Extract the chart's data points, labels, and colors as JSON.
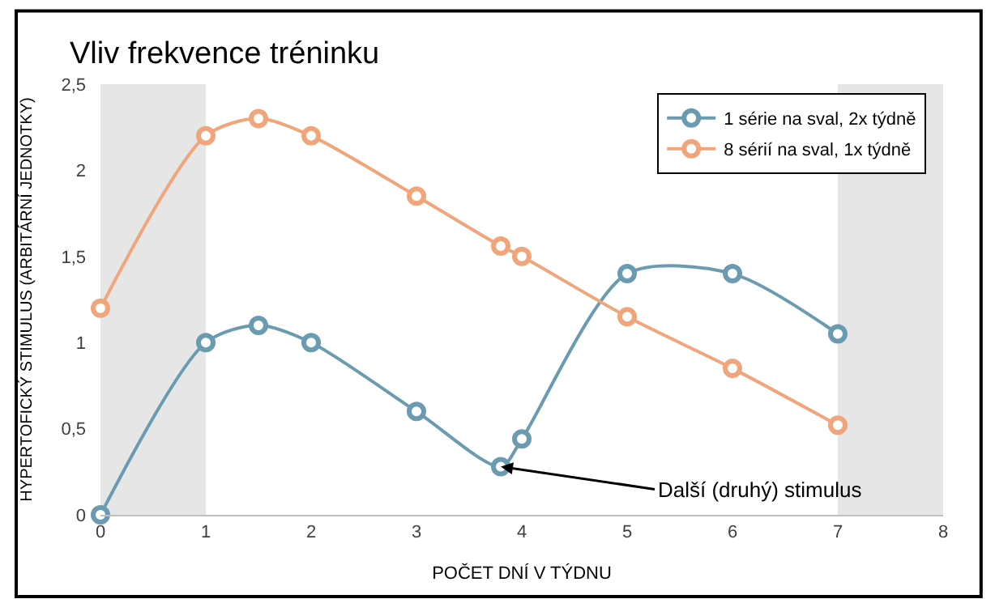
{
  "chart_data": {
    "type": "line",
    "title": "Vliv frekvence tréninku",
    "xlabel": "POČET DNÍ V TÝDNU",
    "ylabel": "HYPERTOFICKÝ STIMULUS (ARBITÁRNÍ JEDNOTKY)",
    "xlim": [
      0,
      8
    ],
    "xticks": [
      0,
      1,
      2,
      3,
      4,
      5,
      6,
      7,
      8
    ],
    "ylim": [
      0,
      2.5
    ],
    "yticks": [
      0,
      {
        "value": 0.5,
        "label": "0,5"
      },
      1,
      {
        "value": 1.5,
        "label": "1,5"
      },
      2,
      {
        "value": 2.5,
        "label": "2,5"
      }
    ],
    "series": [
      {
        "name": "1 série na sval, 2x týdně",
        "color": "#6a9bb0",
        "x": [
          0,
          1,
          1.5,
          2,
          3,
          3.8,
          4,
          5,
          6,
          7
        ],
        "values": [
          0,
          1.0,
          1.1,
          1.0,
          0.6,
          0.28,
          0.44,
          1.4,
          1.4,
          1.05
        ]
      },
      {
        "name": "8 sérií na sval, 1x týdně",
        "color": "#f0a57a",
        "x": [
          0,
          1,
          1.5,
          2,
          3,
          3.8,
          4,
          5,
          6,
          7
        ],
        "values": [
          1.2,
          2.2,
          2.3,
          2.2,
          1.85,
          1.56,
          1.5,
          1.15,
          0.85,
          0.52
        ]
      }
    ],
    "bands": [
      {
        "axis": "x",
        "from": 0,
        "to": 1,
        "color": "#e6e6e6"
      },
      {
        "axis": "x",
        "from": 7,
        "to": 8,
        "color": "#e6e6e6"
      }
    ],
    "annotations": [
      {
        "text": "Další (druhý) stimulus",
        "x": 3.8,
        "y": 0.28
      }
    ],
    "marker": "circle",
    "line_style": "solid",
    "grid": false,
    "legend": "top right"
  }
}
